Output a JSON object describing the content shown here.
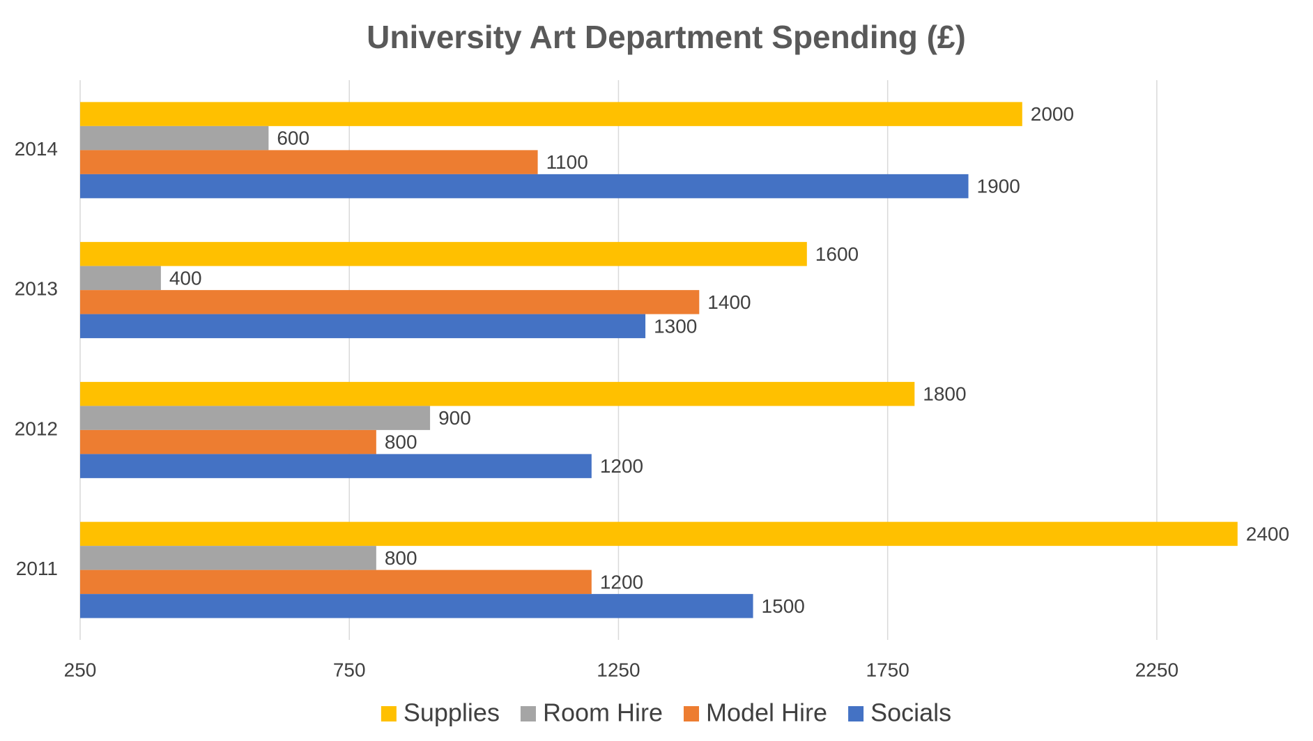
{
  "chart_data": {
    "type": "hbar",
    "title": "University Art Department Spending (£)",
    "categories": [
      "2011",
      "2012",
      "2013",
      "2014"
    ],
    "series": [
      {
        "name": "Supplies",
        "color": "#ffc000",
        "values": [
          2400,
          1800,
          1600,
          2000
        ]
      },
      {
        "name": "Room Hire",
        "color": "#a5a5a5",
        "values": [
          800,
          900,
          400,
          600
        ]
      },
      {
        "name": "Model Hire",
        "color": "#ed7d31",
        "values": [
          1200,
          800,
          1400,
          1100
        ]
      },
      {
        "name": "Socials",
        "color": "#4472c4",
        "values": [
          1500,
          1200,
          1300,
          1900
        ]
      }
    ],
    "xlim": [
      250,
      2500
    ],
    "xticks": [
      250,
      750,
      1250,
      1750,
      2250
    ],
    "grid": true,
    "legend": "bottom",
    "data_labels": true
  }
}
